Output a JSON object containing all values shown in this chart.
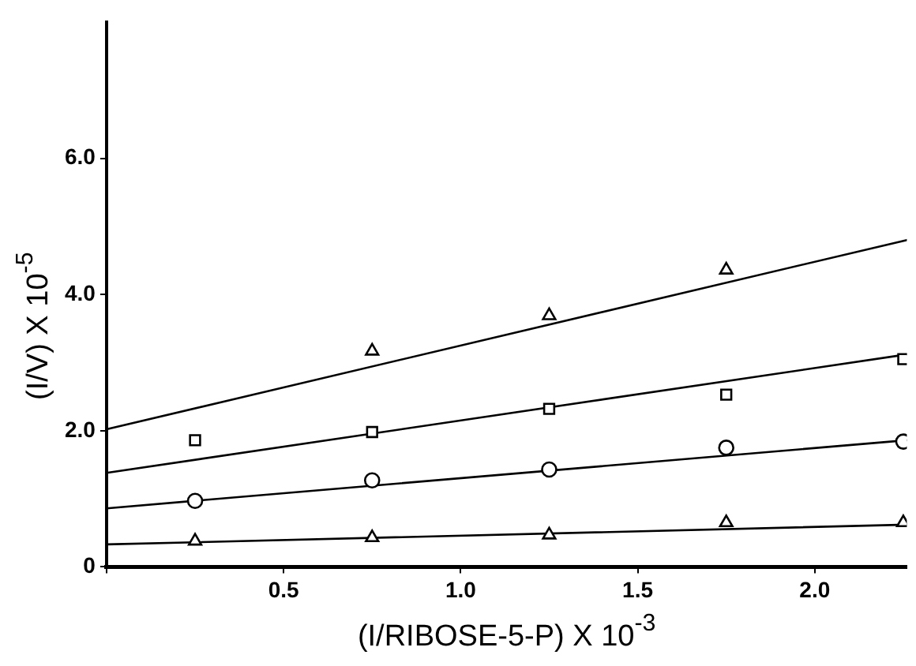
{
  "chart_data": {
    "type": "scatter",
    "xlabel": "(I/RIBOSE-5-P) X 10$^{-3}$",
    "ylabel": "(I/V) X 10$^{-5}$",
    "xlim": [
      0,
      2.26
    ],
    "ylim": [
      0,
      8.0
    ],
    "xticks": [
      {
        "value": 0,
        "label": null
      },
      0.5,
      {
        "value": 1,
        "label": "1.0"
      },
      1.5,
      {
        "value": 2,
        "label": "2.0"
      }
    ],
    "yticks": [
      0,
      {
        "value": 2,
        "label": "2.0"
      },
      {
        "value": 4,
        "label": "4.0"
      },
      {
        "value": 6,
        "label": "6.0"
      }
    ],
    "grid": false,
    "legend": false,
    "series": [
      {
        "type": "scatter",
        "marker": "triangle",
        "color": "#000000",
        "x": [
          0.75,
          1.25,
          1.75
        ],
        "values": [
          3.17,
          3.69,
          4.36
        ]
      },
      {
        "type": "scatter",
        "marker": "square",
        "color": "#000000",
        "x": [
          0.25,
          0.75,
          1.25,
          1.75,
          2.25
        ],
        "values": [
          1.86,
          1.98,
          2.32,
          2.53,
          3.05
        ]
      },
      {
        "type": "scatter",
        "marker": "circle",
        "color": "#000000",
        "x": [
          0.25,
          0.75,
          1.25,
          1.75,
          2.25
        ],
        "values": [
          0.97,
          1.27,
          1.43,
          1.75,
          1.84
        ]
      },
      {
        "type": "scatter",
        "marker": "triangle",
        "color": "#000000",
        "x": [
          0.25,
          0.75,
          1.25,
          1.75,
          2.25
        ],
        "values": [
          0.38,
          0.43,
          0.47,
          0.65,
          0.65
        ]
      },
      {
        "type": "line",
        "marker": "none",
        "color": "#000000",
        "x": [
          0,
          2.26
        ],
        "values": [
          2.02,
          4.8
        ]
      },
      {
        "type": "line",
        "marker": "none",
        "color": "#000000",
        "x": [
          0,
          2.26
        ],
        "values": [
          1.38,
          3.12
        ]
      },
      {
        "type": "line",
        "marker": "none",
        "color": "#000000",
        "x": [
          0,
          2.26
        ],
        "values": [
          0.86,
          1.86
        ]
      },
      {
        "type": "line",
        "marker": "none",
        "color": "#000000",
        "x": [
          0,
          2.26
        ],
        "values": [
          0.33,
          0.62
        ]
      }
    ]
  }
}
